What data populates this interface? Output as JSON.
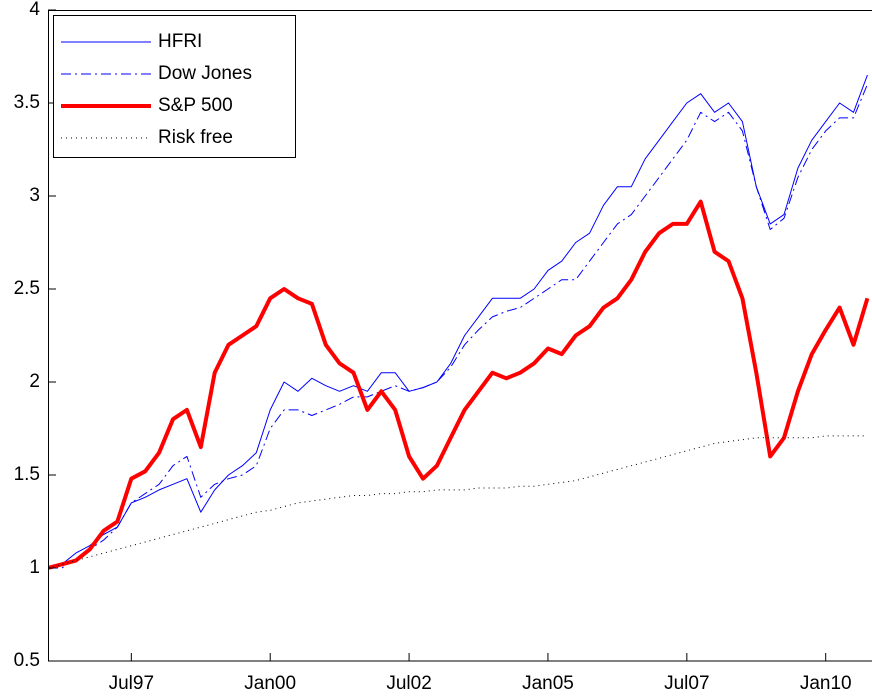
{
  "chart_data": {
    "type": "line",
    "x": [
      "1996-01",
      "1996-04",
      "1996-07",
      "1996-10",
      "1997-01",
      "1997-04",
      "1997-07",
      "1997-10",
      "1998-01",
      "1998-04",
      "1998-07",
      "1998-10",
      "1999-01",
      "1999-04",
      "1999-07",
      "1999-10",
      "2000-01",
      "2000-04",
      "2000-07",
      "2000-10",
      "2001-01",
      "2001-04",
      "2001-07",
      "2001-10",
      "2002-01",
      "2002-04",
      "2002-07",
      "2002-10",
      "2003-01",
      "2003-04",
      "2003-07",
      "2003-10",
      "2004-01",
      "2004-04",
      "2004-07",
      "2004-10",
      "2005-01",
      "2005-04",
      "2005-07",
      "2005-10",
      "2006-01",
      "2006-04",
      "2006-07",
      "2006-10",
      "2007-01",
      "2007-04",
      "2007-07",
      "2007-10",
      "2008-01",
      "2008-04",
      "2008-07",
      "2008-10",
      "2009-01",
      "2009-04",
      "2009-07",
      "2009-10",
      "2010-01",
      "2010-04",
      "2010-07",
      "2010-10"
    ],
    "series": [
      {
        "name": "HFRI",
        "color": "#0000ff",
        "linestyle": "solid",
        "linewidth": 1,
        "values": [
          1.0,
          1.02,
          1.08,
          1.12,
          1.18,
          1.22,
          1.35,
          1.38,
          1.42,
          1.45,
          1.48,
          1.3,
          1.42,
          1.5,
          1.55,
          1.62,
          1.85,
          2.0,
          1.95,
          2.02,
          1.98,
          1.95,
          1.98,
          1.95,
          2.05,
          2.05,
          1.95,
          1.97,
          2.0,
          2.1,
          2.25,
          2.35,
          2.45,
          2.45,
          2.45,
          2.5,
          2.6,
          2.65,
          2.75,
          2.8,
          2.95,
          3.05,
          3.05,
          3.2,
          3.3,
          3.4,
          3.5,
          3.55,
          3.45,
          3.5,
          3.4,
          3.05,
          2.85,
          2.9,
          3.15,
          3.3,
          3.4,
          3.5,
          3.45,
          3.65
        ]
      },
      {
        "name": "Dow Jones",
        "color": "#0000ff",
        "linestyle": "dashdot",
        "linewidth": 1,
        "values": [
          1.0,
          1.0,
          1.05,
          1.1,
          1.15,
          1.22,
          1.35,
          1.4,
          1.45,
          1.55,
          1.6,
          1.38,
          1.45,
          1.48,
          1.5,
          1.55,
          1.75,
          1.85,
          1.85,
          1.82,
          1.85,
          1.88,
          1.92,
          1.92,
          1.95,
          1.98,
          1.95,
          1.97,
          2.0,
          2.08,
          2.2,
          2.28,
          2.35,
          2.38,
          2.4,
          2.45,
          2.5,
          2.55,
          2.55,
          2.65,
          2.75,
          2.85,
          2.9,
          3.0,
          3.1,
          3.2,
          3.3,
          3.45,
          3.4,
          3.45,
          3.35,
          3.05,
          2.82,
          2.88,
          3.1,
          3.25,
          3.35,
          3.42,
          3.42,
          3.6
        ]
      },
      {
        "name": "S&P 500",
        "color": "#ff0000",
        "linestyle": "solid",
        "linewidth": 4,
        "values": [
          1.0,
          1.02,
          1.04,
          1.1,
          1.2,
          1.25,
          1.48,
          1.52,
          1.62,
          1.8,
          1.85,
          1.65,
          2.05,
          2.2,
          2.25,
          2.3,
          2.45,
          2.5,
          2.45,
          2.42,
          2.2,
          2.1,
          2.05,
          1.85,
          1.95,
          1.85,
          1.6,
          1.48,
          1.55,
          1.7,
          1.85,
          1.95,
          2.05,
          2.02,
          2.05,
          2.1,
          2.18,
          2.15,
          2.25,
          2.3,
          2.4,
          2.45,
          2.55,
          2.7,
          2.8,
          2.85,
          2.85,
          2.97,
          2.7,
          2.65,
          2.45,
          2.05,
          1.6,
          1.7,
          1.95,
          2.15,
          2.28,
          2.4,
          2.2,
          2.45
        ]
      },
      {
        "name": "Risk free",
        "color": "#000000",
        "linestyle": "dotted",
        "linewidth": 1,
        "values": [
          1.0,
          1.02,
          1.04,
          1.06,
          1.08,
          1.1,
          1.12,
          1.14,
          1.16,
          1.18,
          1.2,
          1.22,
          1.24,
          1.26,
          1.28,
          1.3,
          1.31,
          1.33,
          1.35,
          1.36,
          1.37,
          1.38,
          1.39,
          1.39,
          1.4,
          1.4,
          1.41,
          1.41,
          1.42,
          1.42,
          1.42,
          1.43,
          1.43,
          1.43,
          1.44,
          1.44,
          1.45,
          1.46,
          1.47,
          1.49,
          1.51,
          1.53,
          1.55,
          1.57,
          1.59,
          1.61,
          1.63,
          1.65,
          1.67,
          1.68,
          1.69,
          1.7,
          1.7,
          1.7,
          1.7,
          1.7,
          1.71,
          1.71,
          1.71,
          1.71
        ]
      }
    ],
    "xlim": [
      "1996-01",
      "2010-11"
    ],
    "xticks": [
      {
        "value": "1997-07",
        "label": "Jul97"
      },
      {
        "value": "2000-01",
        "label": "Jan00"
      },
      {
        "value": "2002-07",
        "label": "Jul02"
      },
      {
        "value": "2005-01",
        "label": "Jan05"
      },
      {
        "value": "2007-07",
        "label": "Jul07"
      },
      {
        "value": "2010-01",
        "label": "Jan10"
      }
    ],
    "ylim": [
      0.5,
      4
    ],
    "yticks": [
      0.5,
      1,
      1.5,
      2,
      2.5,
      3,
      3.5,
      4
    ],
    "grid": false,
    "legend": "upper-left"
  }
}
